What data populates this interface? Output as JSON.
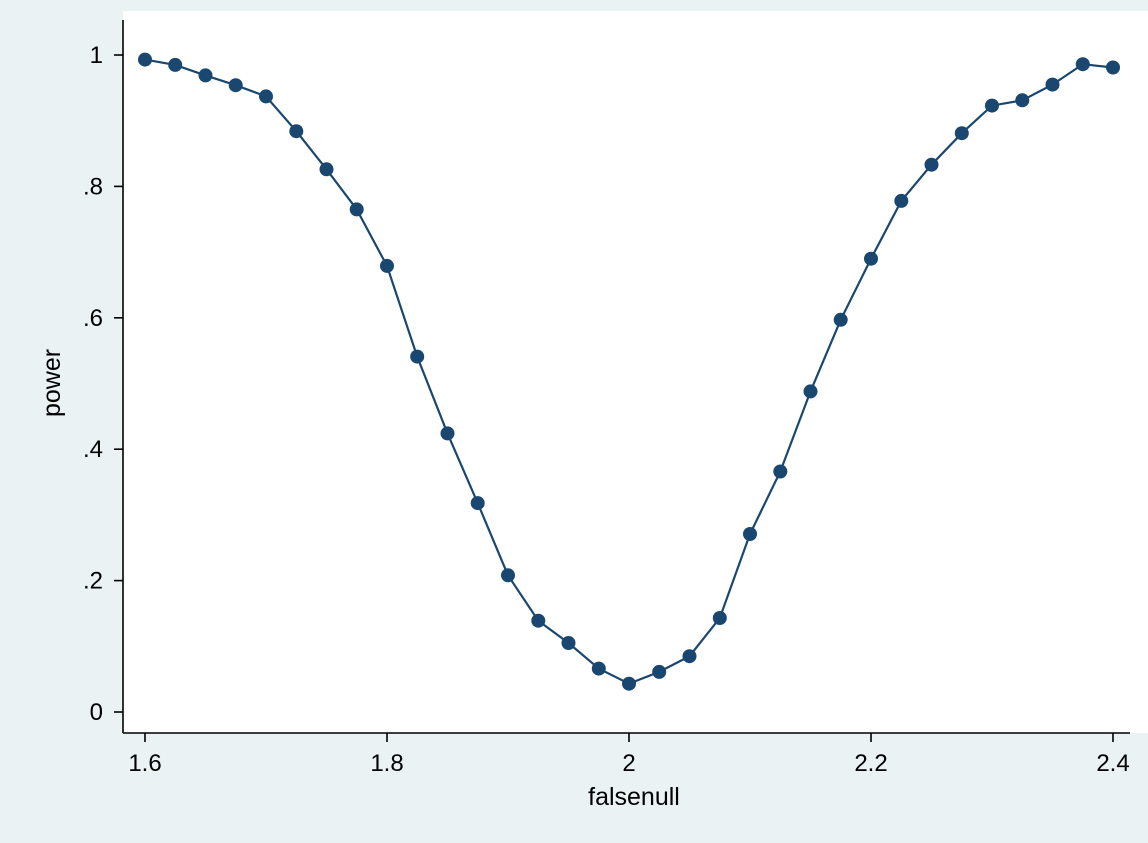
{
  "chart_data": {
    "type": "line",
    "title": "",
    "xlabel": "falsenull",
    "ylabel": "power",
    "xlim": [
      1.6,
      2.4
    ],
    "ylim": [
      0,
      1
    ],
    "xticks": [
      {
        "value": 1.6,
        "label": "1.6"
      },
      {
        "value": 1.8,
        "label": "1.8"
      },
      {
        "value": 2.0,
        "label": "2"
      },
      {
        "value": 2.2,
        "label": "2.2"
      },
      {
        "value": 2.4,
        "label": "2.4"
      }
    ],
    "yticks": [
      {
        "value": 0,
        "label": "0"
      },
      {
        "value": 0.2,
        "label": ".2"
      },
      {
        "value": 0.4,
        "label": ".4"
      },
      {
        "value": 0.6,
        "label": ".6"
      },
      {
        "value": 0.8,
        "label": ".8"
      },
      {
        "value": 1.0,
        "label": "1"
      }
    ],
    "grid": false,
    "legend": "none",
    "colors": {
      "series": "#1a476f",
      "background": "#eaf2f3",
      "panel": "#ffffff"
    },
    "series": [
      {
        "x": [
          1.6,
          1.625,
          1.65,
          1.675,
          1.7,
          1.725,
          1.75,
          1.775,
          1.8,
          1.825,
          1.85,
          1.875,
          1.9,
          1.925,
          1.95,
          1.975,
          2.0,
          2.025,
          2.05,
          2.075,
          2.1,
          2.125,
          2.15,
          2.175,
          2.2,
          2.225,
          2.25,
          2.275,
          2.3,
          2.325,
          2.35,
          2.375,
          2.4
        ],
        "values": [
          0.993,
          0.985,
          0.969,
          0.954,
          0.937,
          0.884,
          0.826,
          0.765,
          0.679,
          0.541,
          0.424,
          0.318,
          0.208,
          0.139,
          0.105,
          0.066,
          0.043,
          0.061,
          0.085,
          0.143,
          0.271,
          0.366,
          0.488,
          0.597,
          0.69,
          0.778,
          0.833,
          0.881,
          0.923,
          0.931,
          0.955,
          0.986,
          0.981
        ]
      }
    ]
  }
}
